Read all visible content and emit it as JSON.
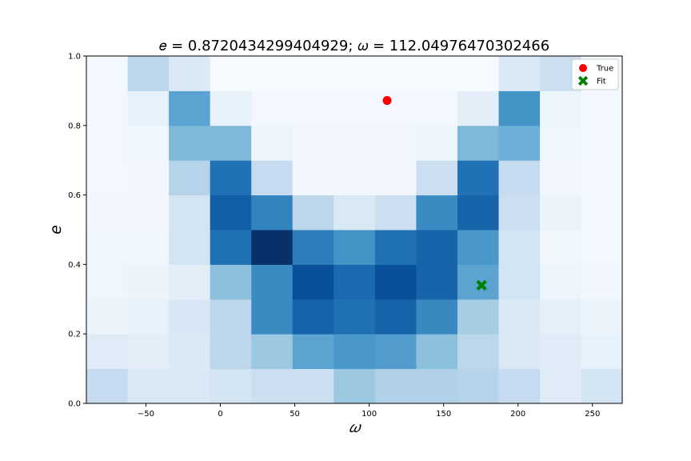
{
  "chart_data": {
    "type": "heatmap",
    "title": "𝑒 = 0.8720434299404929; 𝜔 = 112.04976470302466",
    "xlabel": "𝜔",
    "ylabel": "e",
    "xlim": [
      -90,
      270
    ],
    "ylim": [
      0,
      1
    ],
    "xticks": [
      -50,
      0,
      50,
      100,
      150,
      200,
      250
    ],
    "yticks": [
      0.0,
      0.2,
      0.4,
      0.6,
      0.8,
      1.0
    ],
    "x_edges": [
      -90,
      -62.3,
      -34.6,
      -6.9,
      20.8,
      48.5,
      76.2,
      103.9,
      131.6,
      159.3,
      187.0,
      214.7,
      242.4,
      270
    ],
    "y_edges": [
      0.0,
      0.1,
      0.2,
      0.3,
      0.4,
      0.5,
      0.6,
      0.7,
      0.8,
      0.9,
      1.0
    ],
    "colormap": [
      "#f7fbff",
      "#deebf7",
      "#c6dbef",
      "#9ecae1",
      "#6baed6",
      "#4292c6",
      "#2171b5",
      "#08519c",
      "#08306b"
    ],
    "z": [
      [
        0.25,
        0.15,
        0.15,
        0.18,
        0.22,
        0.22,
        0.38,
        0.32,
        0.32,
        0.3,
        0.25,
        0.12,
        0.18
      ],
      [
        0.12,
        0.1,
        0.14,
        0.28,
        0.38,
        0.55,
        0.6,
        0.58,
        0.42,
        0.28,
        0.14,
        0.12,
        0.08
      ],
      [
        0.06,
        0.08,
        0.16,
        0.28,
        0.65,
        0.8,
        0.75,
        0.8,
        0.66,
        0.35,
        0.14,
        0.09,
        0.06
      ],
      [
        0.04,
        0.06,
        0.1,
        0.42,
        0.65,
        0.88,
        0.78,
        0.88,
        0.8,
        0.55,
        0.18,
        0.05,
        0.03
      ],
      [
        0.04,
        0.04,
        0.18,
        0.75,
        1.0,
        0.7,
        0.62,
        0.75,
        0.8,
        0.6,
        0.18,
        0.04,
        0.02
      ],
      [
        0.03,
        0.03,
        0.18,
        0.82,
        0.68,
        0.28,
        0.15,
        0.22,
        0.65,
        0.8,
        0.22,
        0.06,
        0.02
      ],
      [
        0.02,
        0.03,
        0.3,
        0.75,
        0.25,
        0.03,
        0.03,
        0.03,
        0.22,
        0.75,
        0.25,
        0.03,
        0.02
      ],
      [
        0.02,
        0.04,
        0.45,
        0.45,
        0.05,
        0.03,
        0.03,
        0.03,
        0.05,
        0.45,
        0.5,
        0.04,
        0.02
      ],
      [
        0.02,
        0.08,
        0.55,
        0.08,
        0.02,
        0.02,
        0.02,
        0.02,
        0.02,
        0.1,
        0.62,
        0.05,
        0.02
      ],
      [
        0.02,
        0.28,
        0.14,
        0.01,
        0.01,
        0.01,
        0.01,
        0.01,
        0.01,
        0.01,
        0.14,
        0.22,
        0.02
      ]
    ],
    "points": [
      {
        "name": "True",
        "x": 112.05,
        "y": 0.872,
        "color": "#ff0000",
        "marker": "circle"
      },
      {
        "name": "Fit",
        "x": 175.5,
        "y": 0.34,
        "color": "#008000",
        "marker": "x"
      }
    ],
    "legend": {
      "placement": "top-right",
      "entries": [
        {
          "label": "True",
          "color": "#ff0000",
          "marker": "circle"
        },
        {
          "label": "Fit",
          "color": "#008000",
          "marker": "x"
        }
      ]
    },
    "grid": false
  }
}
